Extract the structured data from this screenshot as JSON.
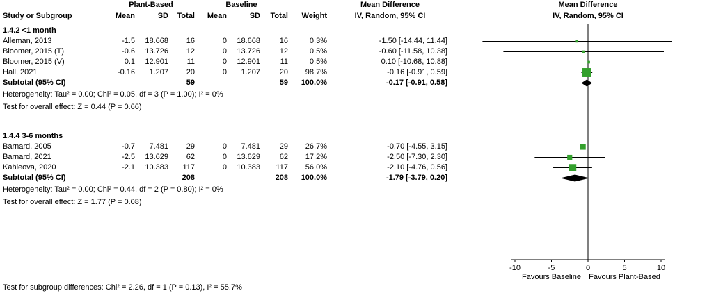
{
  "header": {
    "group_plant": "Plant-Based",
    "group_baseline": "Baseline",
    "md_text_title": "Mean Difference",
    "md_plot_title": "Mean Difference",
    "study": "Study or Subgroup",
    "mean": "Mean",
    "sd": "SD",
    "total": "Total",
    "weight": "Weight",
    "ci_method": "IV, Random, 95% CI"
  },
  "subgroups": [
    {
      "title": "1.4.2 <1 month",
      "studies": [
        {
          "name": "Alleman, 2013",
          "mean1": "-1.5",
          "sd1": "18.668",
          "total1": "16",
          "mean2": "0",
          "sd2": "18.668",
          "total2": "16",
          "weight": "0.3%",
          "ci": "-1.50 [-14.44, 11.44]"
        },
        {
          "name": "Bloomer, 2015 (T)",
          "mean1": "-0.6",
          "sd1": "13.726",
          "total1": "12",
          "mean2": "0",
          "sd2": "13.726",
          "total2": "12",
          "weight": "0.5%",
          "ci": "-0.60 [-11.58, 10.38]"
        },
        {
          "name": "Bloomer, 2015 (V)",
          "mean1": "0.1",
          "sd1": "12.901",
          "total1": "11",
          "mean2": "0",
          "sd2": "12.901",
          "total2": "11",
          "weight": "0.5%",
          "ci": "0.10 [-10.68, 10.88]"
        },
        {
          "name": "Hall, 2021",
          "mean1": "-0.16",
          "sd1": "1.207",
          "total1": "20",
          "mean2": "0",
          "sd2": "1.207",
          "total2": "20",
          "weight": "98.7%",
          "ci": "-0.16 [-0.91, 0.59]"
        }
      ],
      "subtotal": {
        "label": "Subtotal (95% CI)",
        "total1": "59",
        "total2": "59",
        "weight": "100.0%",
        "ci": "-0.17 [-0.91, 0.58]"
      },
      "heterogeneity": "Heterogeneity: Tau² = 0.00; Chi² = 0.05, df = 3 (P = 1.00); I² = 0%",
      "overall_effect": "Test for overall effect: Z = 0.44 (P = 0.66)"
    },
    {
      "title": "1.4.4 3-6 months",
      "studies": [
        {
          "name": "Barnard, 2005",
          "mean1": "-0.7",
          "sd1": "7.481",
          "total1": "29",
          "mean2": "0",
          "sd2": "7.481",
          "total2": "29",
          "weight": "26.7%",
          "ci": "-0.70 [-4.55, 3.15]"
        },
        {
          "name": "Barnard, 2021",
          "mean1": "-2.5",
          "sd1": "13.629",
          "total1": "62",
          "mean2": "0",
          "sd2": "13.629",
          "total2": "62",
          "weight": "17.2%",
          "ci": "-2.50 [-7.30, 2.30]"
        },
        {
          "name": "Kahleova, 2020",
          "mean1": "-2.1",
          "sd1": "10.383",
          "total1": "117",
          "mean2": "0",
          "sd2": "10.383",
          "total2": "117",
          "weight": "56.0%",
          "ci": "-2.10 [-4.76, 0.56]"
        }
      ],
      "subtotal": {
        "label": "Subtotal (95% CI)",
        "total1": "208",
        "total2": "208",
        "weight": "100.0%",
        "ci": "-1.79 [-3.79, 0.20]"
      },
      "heterogeneity": "Heterogeneity: Tau² = 0.00; Chi² = 0.44, df = 2 (P = 0.80); I² = 0%",
      "overall_effect": "Test for overall effect: Z = 1.77 (P = 0.08)"
    }
  ],
  "footer": "Test for subgroup differences: Chi² = 2.26, df = 1 (P = 0.13), I² = 55.7%",
  "chart_data": {
    "type": "forest",
    "effect_measure": "Mean Difference, IV, Random, 95% CI",
    "axis": {
      "min": -10,
      "max": 10,
      "ticks": [
        -10,
        -5,
        0,
        5,
        10
      ]
    },
    "xlabel_left": "Favours Baseline",
    "xlabel_right": "Favours Plant-Based",
    "marker_color": "#33a02c",
    "diamond_color": "#000000",
    "rows": [
      {
        "label": "Alleman, 2013",
        "kind": "study",
        "est": -1.5,
        "lo": -14.44,
        "hi": 11.44,
        "weight": 0.3
      },
      {
        "label": "Bloomer, 2015 (T)",
        "kind": "study",
        "est": -0.6,
        "lo": -11.58,
        "hi": 10.38,
        "weight": 0.5
      },
      {
        "label": "Bloomer, 2015 (V)",
        "kind": "study",
        "est": 0.1,
        "lo": -10.68,
        "hi": 10.88,
        "weight": 0.5
      },
      {
        "label": "Hall, 2021",
        "kind": "study",
        "est": -0.16,
        "lo": -0.91,
        "hi": 0.59,
        "weight": 98.7
      },
      {
        "label": "Subtotal <1 month",
        "kind": "diamond",
        "est": -0.17,
        "lo": -0.91,
        "hi": 0.58
      },
      {
        "label": "Barnard, 2005",
        "kind": "study",
        "est": -0.7,
        "lo": -4.55,
        "hi": 3.15,
        "weight": 26.7
      },
      {
        "label": "Barnard, 2021",
        "kind": "study",
        "est": -2.5,
        "lo": -7.3,
        "hi": 2.3,
        "weight": 17.2
      },
      {
        "label": "Kahleova, 2020",
        "kind": "study",
        "est": -2.1,
        "lo": -4.76,
        "hi": 0.56,
        "weight": 56.0
      },
      {
        "label": "Subtotal 3-6 months",
        "kind": "diamond",
        "est": -1.79,
        "lo": -3.79,
        "hi": 0.2
      }
    ]
  }
}
